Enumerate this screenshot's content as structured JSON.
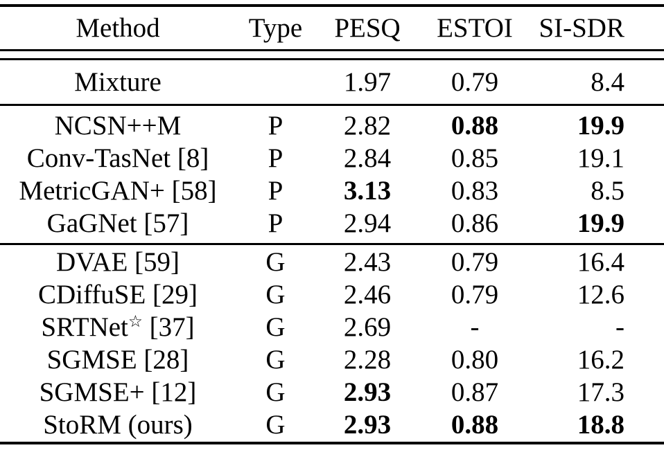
{
  "colors": {
    "text": "#000000",
    "background": "#ffffff",
    "rules": "#000000"
  },
  "table": {
    "columns": [
      "Method",
      "Type",
      "PESQ",
      "ESTOI",
      "SI-SDR"
    ],
    "sections": [
      {
        "id": "mixture",
        "rows": [
          {
            "method": {
              "pre": "Mixture",
              "sup": "",
              "post": ""
            },
            "type": "",
            "pesq": {
              "text": "1.97",
              "bold": false
            },
            "estoi": {
              "text": "0.79",
              "bold": false
            },
            "sisdr": {
              "text": "8.4",
              "bold": false
            }
          }
        ]
      },
      {
        "id": "predictive",
        "rows": [
          {
            "method": {
              "pre": "NCSN++M",
              "sup": "",
              "post": ""
            },
            "type": "P",
            "pesq": {
              "text": "2.82",
              "bold": false
            },
            "estoi": {
              "text": "0.88",
              "bold": true
            },
            "sisdr": {
              "text": "19.9",
              "bold": true
            }
          },
          {
            "method": {
              "pre": "Conv-TasNet [8]",
              "sup": "",
              "post": ""
            },
            "type": "P",
            "pesq": {
              "text": "2.84",
              "bold": false
            },
            "estoi": {
              "text": "0.85",
              "bold": false
            },
            "sisdr": {
              "text": "19.1",
              "bold": false
            }
          },
          {
            "method": {
              "pre": "MetricGAN+ [58]",
              "sup": "",
              "post": ""
            },
            "type": "P",
            "pesq": {
              "text": "3.13",
              "bold": true
            },
            "estoi": {
              "text": "0.83",
              "bold": false
            },
            "sisdr": {
              "text": "8.5",
              "bold": false
            }
          },
          {
            "method": {
              "pre": "GaGNet [57]",
              "sup": "",
              "post": ""
            },
            "type": "P",
            "pesq": {
              "text": "2.94",
              "bold": false
            },
            "estoi": {
              "text": "0.86",
              "bold": false
            },
            "sisdr": {
              "text": "19.9",
              "bold": true
            }
          }
        ]
      },
      {
        "id": "generative",
        "rows": [
          {
            "method": {
              "pre": "DVAE [59]",
              "sup": "",
              "post": ""
            },
            "type": "G",
            "pesq": {
              "text": "2.43",
              "bold": false
            },
            "estoi": {
              "text": "0.79",
              "bold": false
            },
            "sisdr": {
              "text": "16.4",
              "bold": false
            }
          },
          {
            "method": {
              "pre": "CDiffuSE [29]",
              "sup": "",
              "post": ""
            },
            "type": "G",
            "pesq": {
              "text": "2.46",
              "bold": false
            },
            "estoi": {
              "text": "0.79",
              "bold": false
            },
            "sisdr": {
              "text": "12.6",
              "bold": false
            }
          },
          {
            "method": {
              "pre": "SRTNet",
              "sup": "☆",
              "post": " [37]"
            },
            "type": "G",
            "pesq": {
              "text": "2.69",
              "bold": false
            },
            "estoi": {
              "text": "-",
              "bold": false
            },
            "sisdr": {
              "text": "-",
              "bold": false
            }
          },
          {
            "method": {
              "pre": "SGMSE [28]",
              "sup": "",
              "post": ""
            },
            "type": "G",
            "pesq": {
              "text": "2.28",
              "bold": false
            },
            "estoi": {
              "text": "0.80",
              "bold": false
            },
            "sisdr": {
              "text": "16.2",
              "bold": false
            }
          },
          {
            "method": {
              "pre": "SGMSE+ [12]",
              "sup": "",
              "post": ""
            },
            "type": "G",
            "pesq": {
              "text": "2.93",
              "bold": true
            },
            "estoi": {
              "text": "0.87",
              "bold": false
            },
            "sisdr": {
              "text": "17.3",
              "bold": false
            }
          },
          {
            "method": {
              "pre": "StoRM (ours)",
              "sup": "",
              "post": ""
            },
            "type": "G",
            "pesq": {
              "text": "2.93",
              "bold": true
            },
            "estoi": {
              "text": "0.88",
              "bold": true
            },
            "sisdr": {
              "text": "18.8",
              "bold": true
            }
          }
        ]
      }
    ]
  }
}
